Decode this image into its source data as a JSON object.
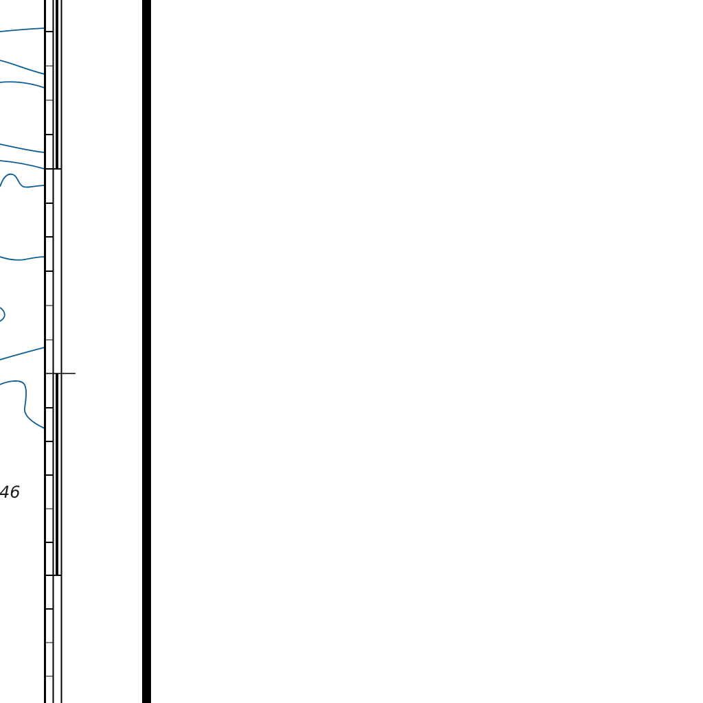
{
  "map": {
    "grid_value_label": "46",
    "colors": {
      "contour": "#0b5a92",
      "neatline": "#000000",
      "background": "#ffffff"
    }
  }
}
